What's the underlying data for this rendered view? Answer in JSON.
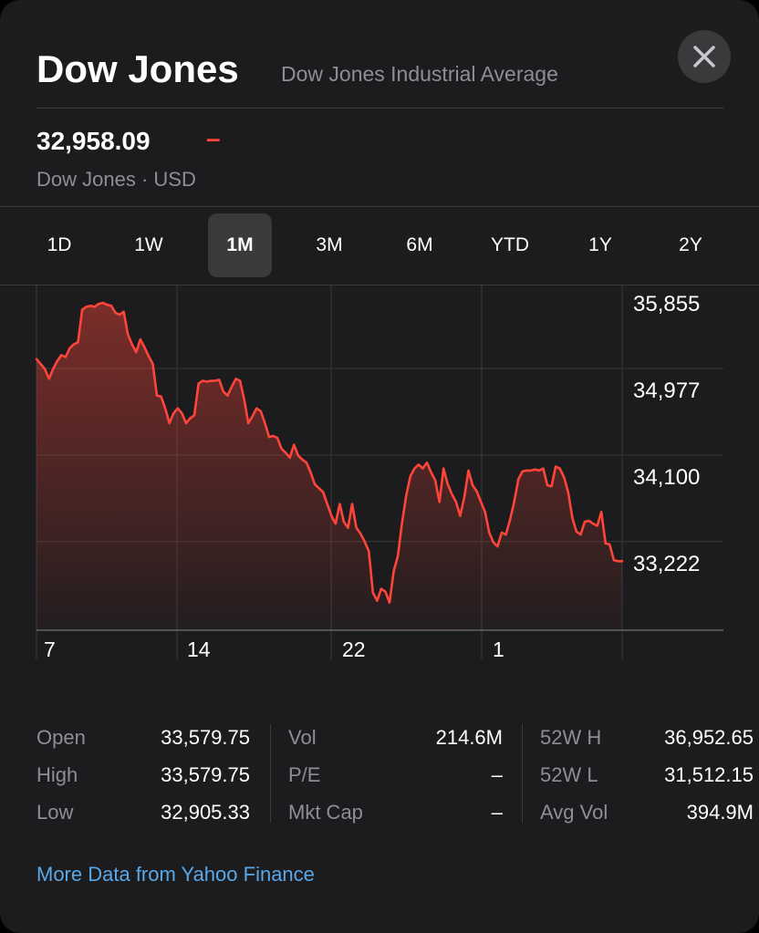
{
  "header": {
    "title": "Dow Jones",
    "subtitle": "Dow Jones Industrial Average",
    "close_icon": "close-icon"
  },
  "quote": {
    "price": "32,958.09",
    "change": "–",
    "exchange_currency": "Dow Jones · USD"
  },
  "range_tabs": [
    {
      "label": "1D",
      "active": false
    },
    {
      "label": "1W",
      "active": false
    },
    {
      "label": "1M",
      "active": true
    },
    {
      "label": "3M",
      "active": false
    },
    {
      "label": "6M",
      "active": false
    },
    {
      "label": "YTD",
      "active": false
    },
    {
      "label": "1Y",
      "active": false
    },
    {
      "label": "2Y",
      "active": false
    }
  ],
  "chart_data": {
    "type": "area",
    "y_tick_labels": [
      "35,855",
      "34,977",
      "34,100",
      "33,222"
    ],
    "y_ticks": [
      35855,
      34977,
      34100,
      33222
    ],
    "x_tick_labels": [
      "7",
      "14",
      "22",
      "1"
    ],
    "ylim": [
      32600,
      36050
    ],
    "series_color": "#ff453a",
    "values": [
      35350,
      35300,
      35250,
      35150,
      35250,
      35330,
      35390,
      35370,
      35460,
      35500,
      35520,
      35850,
      35880,
      35890,
      35880,
      35910,
      35920,
      35900,
      35890,
      35820,
      35800,
      35830,
      35600,
      35500,
      35420,
      35550,
      35470,
      35380,
      35300,
      34980,
      34970,
      34850,
      34700,
      34800,
      34850,
      34800,
      34700,
      34750,
      34780,
      35100,
      35130,
      35120,
      35130,
      35130,
      35140,
      35020,
      34980,
      35070,
      35150,
      35130,
      34940,
      34700,
      34770,
      34850,
      34820,
      34700,
      34560,
      34570,
      34550,
      34440,
      34400,
      34350,
      34480,
      34370,
      34330,
      34300,
      34200,
      34080,
      34040,
      34000,
      33880,
      33760,
      33680,
      33880,
      33700,
      33640,
      33880,
      33640,
      33580,
      33500,
      33400,
      32980,
      32900,
      33020,
      32990,
      32880,
      33200,
      33350,
      33690,
      33960,
      34160,
      34240,
      34280,
      34240,
      34300,
      34200,
      34120,
      33900,
      34240,
      34080,
      33980,
      33900,
      33760,
      33950,
      34220,
      34070,
      34010,
      33900,
      33800,
      33590,
      33490,
      33450,
      33590,
      33570,
      33720,
      33900,
      34130,
      34210,
      34220,
      34220,
      34230,
      34220,
      34240,
      34070,
      34060,
      34260,
      34240,
      34150,
      34000,
      33740,
      33600,
      33570,
      33700,
      33710,
      33680,
      33660,
      33800,
      33480,
      33470,
      33310,
      33300,
      33300
    ],
    "grid": true
  },
  "stats": {
    "col1": [
      {
        "label": "Open",
        "value": "33,579.75"
      },
      {
        "label": "High",
        "value": "33,579.75"
      },
      {
        "label": "Low",
        "value": "32,905.33"
      }
    ],
    "col2": [
      {
        "label": "Vol",
        "value": "214.6M"
      },
      {
        "label": "P/E",
        "value": "–"
      },
      {
        "label": "Mkt Cap",
        "value": "–"
      }
    ],
    "col3": [
      {
        "label": "52W H",
        "value": "36,952.65"
      },
      {
        "label": "52W L",
        "value": "31,512.15"
      },
      {
        "label": "Avg Vol",
        "value": "394.9M"
      }
    ]
  },
  "footer": {
    "link_text": "More Data from Yahoo Finance"
  }
}
